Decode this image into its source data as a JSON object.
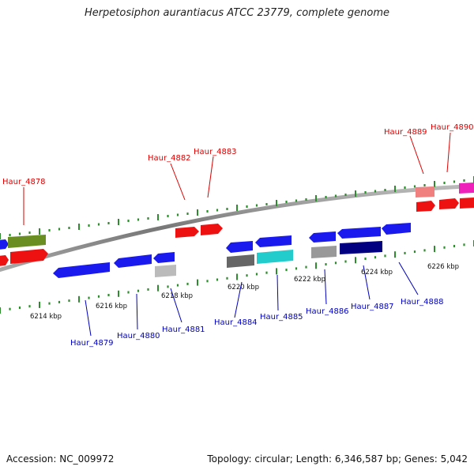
{
  "title": "Herpetosiphon aurantiacus ATCC 23779, complete genome",
  "footer": {
    "accession": "Accession: NC_009972",
    "summary": "Topology: circular; Length: 6,346,587 bp; Genes: 5,042"
  },
  "colors": {
    "backbone": "#888888",
    "ticks": "#2e8b2e",
    "plus_label": "#dd0000",
    "minus_label": "#0000bb"
  },
  "scale_labels": [
    "6214 kbp",
    "6216 kbp",
    "6218 kbp",
    "6220 kbp",
    "6222 kbp",
    "6224 kbp",
    "6226 kbp"
  ],
  "gene_labels": {
    "top": [
      "Haur_4878",
      "Haur_4882",
      "Haur_4883",
      "Haur_4889",
      "Haur_4890"
    ],
    "bottom": [
      "Haur_4879",
      "Haur_4880",
      "Haur_4881",
      "Haur_4884",
      "Haur_4885",
      "Haur_4886",
      "Haur_4887",
      "Haur_4888"
    ]
  }
}
